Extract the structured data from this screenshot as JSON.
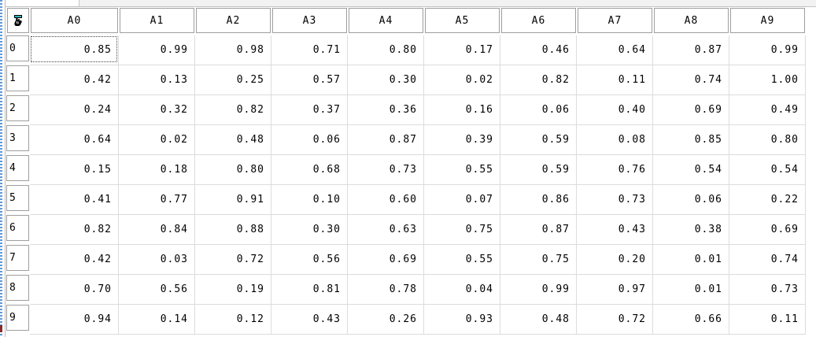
{
  "colors": {
    "grip_blue": "#5a9ae0",
    "grip_red": "#8e2a2a",
    "header_border": "#9e9e9e",
    "grid_line": "#dcdcdc",
    "panel_fill": "#f2f2f2",
    "panel_border": "#c6c6c6",
    "text": "#000000",
    "icon_teal": "#2ab7b7"
  },
  "grid": {
    "corner_icon": "writing-hand-icon",
    "columns": [
      "A0",
      "A1",
      "A2",
      "A3",
      "A4",
      "A5",
      "A6",
      "A7",
      "A8",
      "A9"
    ],
    "rows": [
      {
        "label": "0",
        "values": [
          "0.85",
          "0.99",
          "0.98",
          "0.71",
          "0.80",
          "0.17",
          "0.46",
          "0.64",
          "0.87",
          "0.99"
        ]
      },
      {
        "label": "1",
        "values": [
          "0.42",
          "0.13",
          "0.25",
          "0.57",
          "0.30",
          "0.02",
          "0.82",
          "0.11",
          "0.74",
          "1.00"
        ]
      },
      {
        "label": "2",
        "values": [
          "0.24",
          "0.32",
          "0.82",
          "0.37",
          "0.36",
          "0.16",
          "0.06",
          "0.40",
          "0.69",
          "0.49"
        ]
      },
      {
        "label": "3",
        "values": [
          "0.64",
          "0.02",
          "0.48",
          "0.06",
          "0.87",
          "0.39",
          "0.59",
          "0.08",
          "0.85",
          "0.80"
        ]
      },
      {
        "label": "4",
        "values": [
          "0.15",
          "0.18",
          "0.80",
          "0.68",
          "0.73",
          "0.55",
          "0.59",
          "0.76",
          "0.54",
          "0.54"
        ]
      },
      {
        "label": "5",
        "values": [
          "0.41",
          "0.77",
          "0.91",
          "0.10",
          "0.60",
          "0.07",
          "0.86",
          "0.73",
          "0.06",
          "0.22"
        ]
      },
      {
        "label": "6",
        "values": [
          "0.82",
          "0.84",
          "0.88",
          "0.30",
          "0.63",
          "0.75",
          "0.87",
          "0.43",
          "0.38",
          "0.69"
        ]
      },
      {
        "label": "7",
        "values": [
          "0.42",
          "0.03",
          "0.72",
          "0.56",
          "0.69",
          "0.55",
          "0.75",
          "0.20",
          "0.01",
          "0.74"
        ]
      },
      {
        "label": "8",
        "values": [
          "0.70",
          "0.56",
          "0.19",
          "0.81",
          "0.78",
          "0.04",
          "0.99",
          "0.97",
          "0.01",
          "0.73"
        ]
      },
      {
        "label": "9",
        "values": [
          "0.94",
          "0.14",
          "0.12",
          "0.43",
          "0.26",
          "0.93",
          "0.48",
          "0.72",
          "0.66",
          "0.11"
        ]
      }
    ],
    "focused_cell": {
      "row_index": 0,
      "column": "A0",
      "value": "0.85"
    }
  }
}
